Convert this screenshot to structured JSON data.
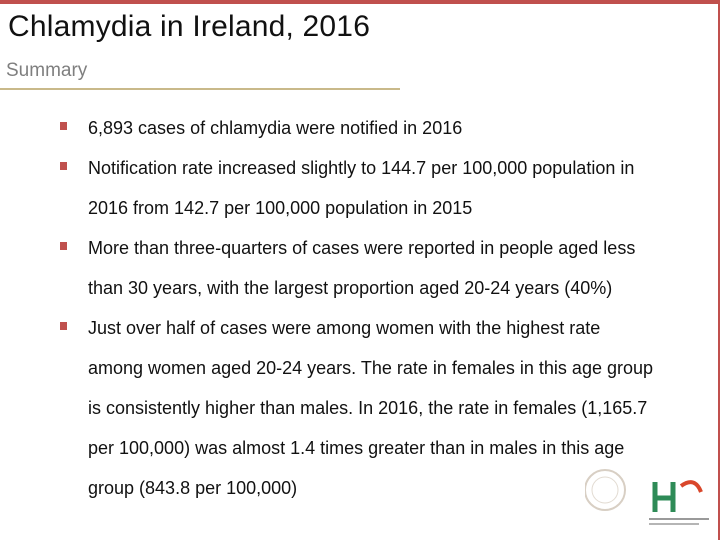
{
  "slide": {
    "title": "Chlamydia in Ireland, 2016",
    "subtitle": "Summary",
    "bullets": [
      "6,893 cases of chlamydia were notified in 2016",
      "Notification rate increased slightly to 144.7 per 100,000 population in 2016 from 142.7 per 100,000 population in 2015",
      "More than three-quarters of cases were reported in people aged less than 30 years, with the largest proportion aged 20-24 years (40%)",
      "Just over half of cases were among women with the highest rate among women aged 20-24 years. The rate in females in this age group is consistently higher than males. In 2016, the rate in females (1,165.7 per 100,000) was almost 1.4 times greater than in males in this age group (843.8 per 100,000)"
    ]
  },
  "colors": {
    "accent": "#c0504d",
    "rule": "#c9b98a",
    "subtitle": "#7f7f7f",
    "hse_green": "#2e8b57",
    "hse_red": "#d9472b"
  },
  "icons": {
    "bullet": "square-bullet-icon",
    "logo": "hse-logo-icon",
    "watermark": "hpsc-seal-icon"
  }
}
